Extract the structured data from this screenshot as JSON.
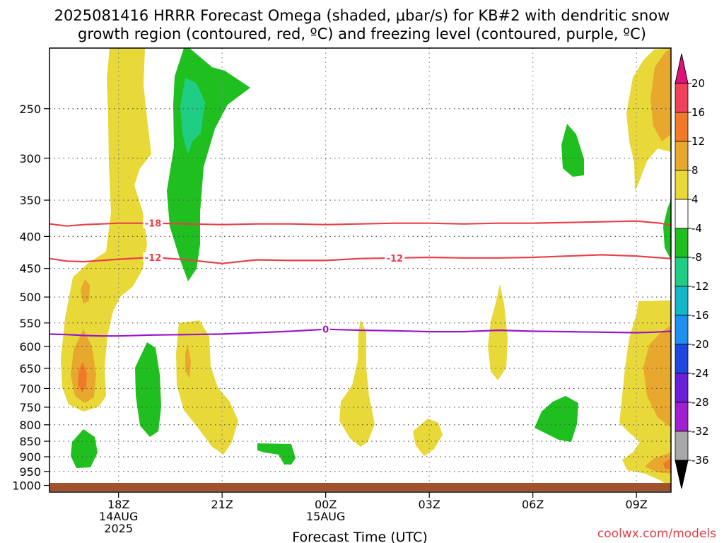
{
  "title": {
    "line1": "2025081416 HRRR Forecast Omega (shaded, μbar/s) for KB#2 with dendritic snow",
    "line2": "growth region (contoured, red, ºC) and freezing level (contoured, purple, ºC)"
  },
  "credit": "coolwx.com/models",
  "chart_data": {
    "type": "heatmap",
    "title": "2025081416 HRRR Forecast Omega (shaded, μbar/s) for KB#2 with dendritic snow growth region (contoured, red, ºC) and freezing level (contoured, purple, ºC)",
    "xlabel": "Forecast Time (UTC)",
    "ylabel": "",
    "x_range_hours_from_16Z": [
      0,
      18
    ],
    "y_axis": {
      "quantity": "pressure (hPa)",
      "inverted": true,
      "range": [
        200,
        1025
      ]
    },
    "y_ticks": [
      250,
      300,
      350,
      400,
      450,
      500,
      550,
      600,
      650,
      700,
      750,
      800,
      850,
      900,
      950,
      1000
    ],
    "x_ticks": [
      {
        "label": "18Z",
        "sub1": "14AUG",
        "sub2": "2025",
        "hour": 2
      },
      {
        "label": "21Z",
        "sub1": "",
        "sub2": "",
        "hour": 5
      },
      {
        "label": "00Z",
        "sub1": "15AUG",
        "sub2": "",
        "hour": 8
      },
      {
        "label": "03Z",
        "sub1": "",
        "sub2": "",
        "hour": 11
      },
      {
        "label": "06Z",
        "sub1": "",
        "sub2": "",
        "hour": 14
      },
      {
        "label": "09Z",
        "sub1": "",
        "sub2": "",
        "hour": 17
      }
    ],
    "grid": true,
    "colorbar": {
      "labels": [
        "20",
        "16",
        "12",
        "8",
        "4",
        "-4",
        "-8",
        "-12",
        "-16",
        "-20",
        "-24",
        "-28",
        "-32",
        "-36"
      ],
      "colors": [
        "#f0405a",
        "#f07a28",
        "#e8a82e",
        "#e8d838",
        "#ffffff",
        "#1fbf1f",
        "#1fce84",
        "#12b8c8",
        "#1e90f0",
        "#1e46e0",
        "#6a1fd8",
        "#a01fd0",
        "#a8a8a8"
      ],
      "top_arrow_color": "#e0127a",
      "bottom_arrow_color": "#000000"
    },
    "contours": [
      {
        "label": "-18",
        "color": "#e8404a",
        "hours": [
          0,
          0.5,
          1,
          1.5,
          2,
          3,
          4,
          5,
          6,
          7,
          8,
          9,
          10,
          11,
          12,
          13,
          14,
          15,
          16,
          17,
          17.7,
          18
        ],
        "pressure": [
          382,
          385,
          383,
          382,
          381,
          381,
          382,
          383,
          382,
          382,
          383,
          382,
          381,
          381,
          382,
          381,
          381,
          380,
          379,
          378,
          381,
          384
        ]
      },
      {
        "label": "-12",
        "color": "#e8404a",
        "hours": [
          0,
          0.5,
          1,
          1.5,
          2,
          3,
          4,
          5,
          6,
          7,
          8,
          9,
          10,
          11,
          12,
          13,
          14,
          15,
          16,
          17,
          17.5,
          18
        ],
        "pressure": [
          434,
          438,
          439,
          437,
          435,
          432,
          436,
          442,
          436,
          437,
          437,
          434,
          433,
          432,
          433,
          433,
          432,
          430,
          428,
          430,
          432,
          434
        ]
      },
      {
        "label": "0",
        "color": "#9a16c8",
        "hours": [
          0,
          0.5,
          1,
          1.5,
          2,
          3,
          4,
          5,
          6,
          7,
          8,
          9,
          10,
          11,
          12,
          13,
          14,
          15,
          16,
          17,
          17.5,
          18
        ],
        "pressure": [
          573,
          574,
          576,
          577,
          577,
          575,
          574,
          573,
          570,
          567,
          563,
          565,
          566,
          568,
          568,
          565,
          567,
          568,
          569,
          570,
          569,
          567
        ]
      }
    ],
    "terrain_color": "#a0522d",
    "omega_regions": [
      {
        "value": 4,
        "color": "#e8d838",
        "note": "upward-motion weak band 16Z-19Z, 250-770 hPa"
      },
      {
        "value": 8,
        "color": "#e8a82e",
        "note": "near 17Z around 650-700 hPa"
      },
      {
        "value": 12,
        "color": "#f07a28",
        "note": "core near 17Z around 700 hPa"
      },
      {
        "value": -4,
        "color": "#1fbf1f",
        "note": "descent region near 20Z, 200-490 hPa"
      },
      {
        "value": -8,
        "color": "#1fce84",
        "note": "core near 20Z around 280 hPa"
      }
    ]
  }
}
